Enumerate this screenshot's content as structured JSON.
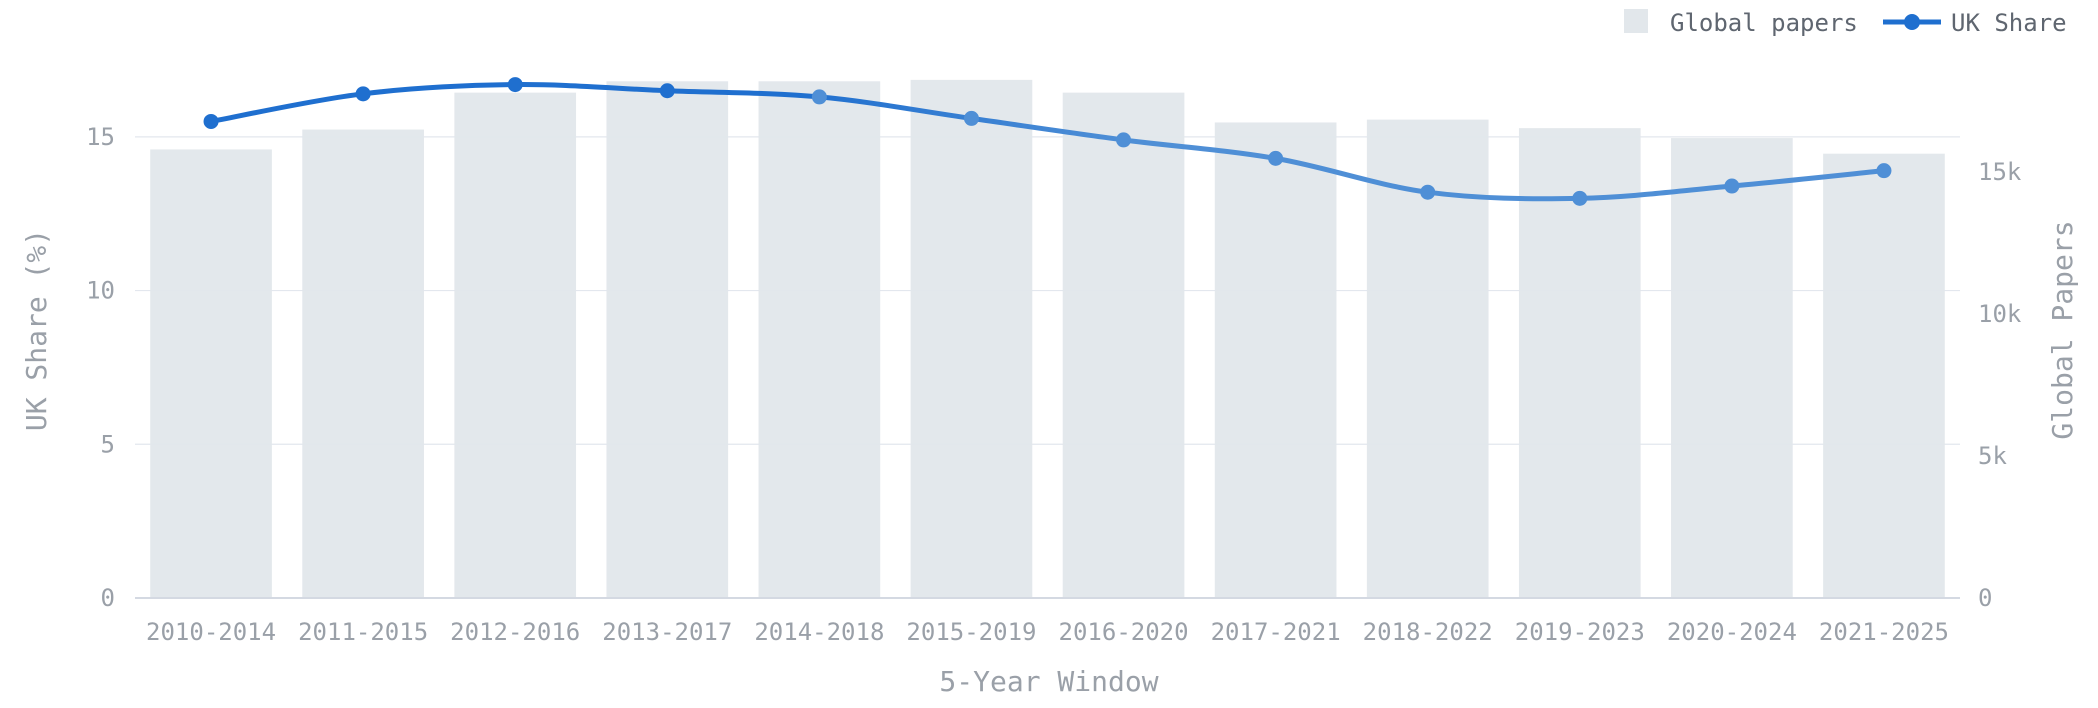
{
  "chart_data": {
    "type": "bar",
    "categories": [
      "2010-2014",
      "2011-2015",
      "2012-2016",
      "2013-2017",
      "2014-2018",
      "2015-2019",
      "2016-2020",
      "2017-2021",
      "2018-2022",
      "2019-2023",
      "2020-2024",
      "2021-2025"
    ],
    "series": [
      {
        "name": "Global papers",
        "type": "bar",
        "axis": "right",
        "color": "#e2e7eb",
        "values": [
          15800,
          16500,
          17800,
          18200,
          18200,
          18250,
          17800,
          16750,
          16850,
          16550,
          16200,
          15650
        ]
      },
      {
        "name": "UK Share",
        "type": "line",
        "axis": "left",
        "color": "#1f6fcf",
        "values": [
          15.5,
          16.4,
          16.7,
          16.5,
          16.3,
          15.6,
          14.9,
          14.3,
          13.2,
          13.0,
          13.4,
          13.9
        ]
      }
    ],
    "xlabel": "5-Year Window",
    "ylabel_left": "UK Share (%)",
    "ylabel_right": "Global Papers",
    "ylim_left": [
      0,
      17.5
    ],
    "ylim_right": [
      0,
      18950
    ],
    "yticks_left": [
      "0",
      "5",
      "10",
      "15"
    ],
    "yticks_left_values": [
      0,
      5,
      10,
      15
    ],
    "yticks_right": [
      "0",
      "5k",
      "10k",
      "15k"
    ],
    "yticks_right_values": [
      0,
      5000,
      10000,
      15000
    ],
    "grid": true,
    "legend_position": "top-right",
    "legend": [
      "Global papers",
      "UK Share"
    ]
  }
}
